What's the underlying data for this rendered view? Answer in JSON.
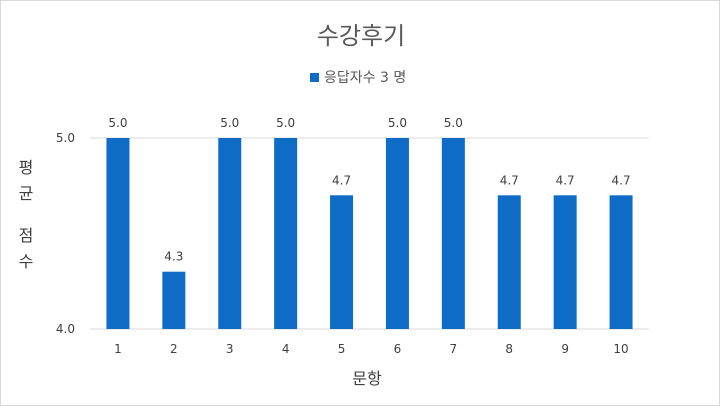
{
  "chart_data": {
    "type": "bar",
    "title": "수강후기",
    "legend": "응답자수 3 명",
    "legend_position": "top",
    "xlabel": "문항",
    "ylabel": "평균 점수",
    "ylim": [
      4.0,
      5.0
    ],
    "yticks": [
      "4.0",
      "5.0"
    ],
    "grid": true,
    "categories": [
      "1",
      "2",
      "3",
      "4",
      "5",
      "6",
      "7",
      "8",
      "9",
      "10"
    ],
    "values": [
      5.0,
      4.3,
      5.0,
      5.0,
      4.7,
      5.0,
      5.0,
      4.7,
      4.7,
      4.7
    ],
    "value_labels": [
      "5.0",
      "4.3",
      "5.0",
      "5.0",
      "4.7",
      "5.0",
      "5.0",
      "4.7",
      "4.7",
      "4.7"
    ],
    "bar_color": "#0f6cc6",
    "gridline_color": "#d9d9d9"
  }
}
